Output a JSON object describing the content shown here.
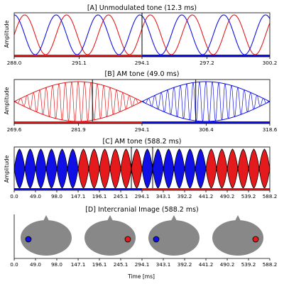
{
  "colors": {
    "left": "#e41a1c",
    "right": "#1010e6",
    "marker": "#000000",
    "head": "#888888",
    "envelope_red": "#e41a1c",
    "envelope_blue": "#1010e6"
  },
  "chart_data": [
    {
      "id": "A",
      "type": "line",
      "title": "[A] Unmodulated tone (12.3 ms)",
      "ylabel": "Amplitude",
      "xlabel": "",
      "xlim": [
        288.0,
        300.2
      ],
      "ylim": [
        -1,
        1
      ],
      "xticks": [
        "288.0",
        "291.1",
        "294.1",
        "297.2",
        "300.2"
      ],
      "xtick_values": [
        288.0,
        291.1,
        294.1,
        297.2,
        300.2
      ],
      "series": [
        {
          "color": "#e41a1c",
          "frequency_khz": 0.5,
          "phase_deg": 0
        },
        {
          "color": "#1010e6",
          "frequency_khz": 0.5,
          "phase_deg": 90
        }
      ],
      "ear_bar": {
        "red_until": 294.1
      },
      "markers": [
        294.1
      ]
    },
    {
      "id": "B",
      "type": "line",
      "title": "[B] AM tone (49.0 ms)",
      "ylabel": "Amplitude",
      "xlabel": "",
      "xlim": [
        269.6,
        318.6
      ],
      "ylim": [
        -1,
        1
      ],
      "xticks": [
        "269.6",
        "281.9",
        "294.1",
        "306.4",
        "318.6"
      ],
      "xtick_values": [
        269.6,
        281.9,
        294.1,
        306.4,
        318.6
      ],
      "segments": [
        {
          "start": 269.6,
          "end": 294.1,
          "color": "#e41a1c"
        },
        {
          "start": 294.1,
          "end": 318.6,
          "color": "#1010e6"
        }
      ],
      "carrier_cycles_per_segment": 10,
      "ear_bar": {
        "red_until": 294.1
      },
      "markers": [
        284.6,
        304.4
      ]
    },
    {
      "id": "C",
      "type": "area",
      "title": "[C] AM tone (588.2 ms)",
      "ylabel": "Amplitude",
      "xlabel": "",
      "xlim": [
        0.0,
        588.2
      ],
      "ylim": [
        -1,
        1
      ],
      "xticks": [
        "0.0",
        "49.0",
        "98.0",
        "147.1",
        "196.1",
        "245.1",
        "294.1",
        "343.1",
        "392.2",
        "441.2",
        "490.2",
        "539.2",
        "588.2"
      ],
      "xtick_values": [
        0.0,
        49.0,
        98.0,
        147.1,
        196.1,
        245.1,
        294.1,
        343.1,
        392.2,
        441.2,
        490.2,
        539.2,
        588.2
      ],
      "lobes": [
        "blue",
        "blue",
        "blue",
        "blue",
        "blue",
        "blue",
        "red",
        "red",
        "red",
        "red",
        "red",
        "red",
        "blue",
        "blue",
        "blue",
        "blue",
        "blue",
        "blue",
        "red",
        "red",
        "red",
        "red",
        "red",
        "red"
      ],
      "ear_bar": {
        "blue_until": 294.1
      },
      "markers": [
        269.6,
        318.6
      ]
    },
    {
      "id": "D",
      "type": "other",
      "title": "[D] Intercranial Image (588.2 ms)",
      "ylabel": "",
      "xlabel": "Time [ms]",
      "xlim": [
        0.0,
        588.2
      ],
      "xticks": [
        "0.0",
        "49.0",
        "98.0",
        "147.1",
        "196.1",
        "245.1",
        "294.1",
        "343.1",
        "392.2",
        "441.2",
        "490.2",
        "539.2",
        "588.2"
      ],
      "xtick_values": [
        0.0,
        49.0,
        98.0,
        147.1,
        196.1,
        245.1,
        294.1,
        343.1,
        392.2,
        441.2,
        490.2,
        539.2,
        588.2
      ],
      "heads": [
        {
          "center_ms": 73.5,
          "dot": "left",
          "dot_color": "#1010e6"
        },
        {
          "center_ms": 220.6,
          "dot": "right",
          "dot_color": "#e41a1c"
        },
        {
          "center_ms": 367.6,
          "dot": "left",
          "dot_color": "#1010e6"
        },
        {
          "center_ms": 514.7,
          "dot": "right",
          "dot_color": "#e41a1c"
        }
      ]
    }
  ]
}
